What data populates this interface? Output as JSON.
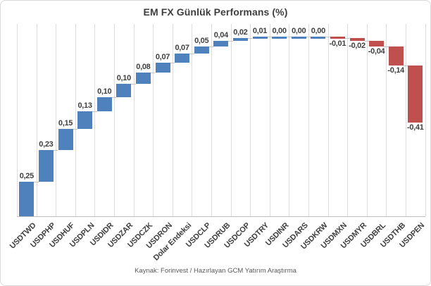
{
  "chart_data": {
    "type": "bar",
    "subtype": "waterfall",
    "title": "EM FX Günlük Performans (%)",
    "categories": [
      "USDTWD",
      "USDPHP",
      "USDHUF",
      "USDPLN",
      "USDIDR",
      "USDZAR",
      "USDCZK",
      "USDRON",
      "Dolar Endeksi",
      "USDCLP",
      "USDRUB",
      "USDCOP",
      "USDTRY",
      "USDINR",
      "USDARS",
      "USDKRW",
      "USDMXN",
      "USDMYR",
      "USDBRL",
      "USDTHB",
      "USDPEN"
    ],
    "values": [
      0.25,
      0.23,
      0.15,
      0.13,
      0.1,
      0.1,
      0.08,
      0.07,
      0.07,
      0.05,
      0.04,
      0.02,
      0.01,
      0.0,
      0.0,
      0.0,
      -0.01,
      -0.02,
      -0.04,
      -0.14,
      -0.41
    ],
    "value_labels": [
      "0,25",
      "0,23",
      "0,15",
      "0,13",
      "0,10",
      "0,10",
      "0,08",
      "0,07",
      "0,07",
      "0,05",
      "0,04",
      "0,02",
      "0,01",
      "0,00",
      "0,00",
      "0,00",
      "-0,01",
      "-0,02",
      "-0,04",
      "-0,14",
      "-0,41"
    ],
    "source": "Kaynak: Forinvest / Hazırlayan GCM Yatırım Araştırma",
    "colors": {
      "positive": "#4F81BD",
      "negative": "#C0504D",
      "gridline": "#DCDCDC",
      "connector": "#C6C6C6",
      "axis_line": "#BFBFBF",
      "title_text": "#3F3F3F",
      "label_text": "#404040",
      "source_text": "#595959",
      "border": "#D9D9D9"
    },
    "layout_hints": {
      "baseline_value": 0,
      "cumulative_max": 1.3,
      "cumulative_end": 0.68,
      "gridlines": "vertical-between-categories",
      "legend": "none",
      "value_label_position": "outside-end",
      "category_label_rotation_deg": -45,
      "decimal_separator": ","
    }
  }
}
